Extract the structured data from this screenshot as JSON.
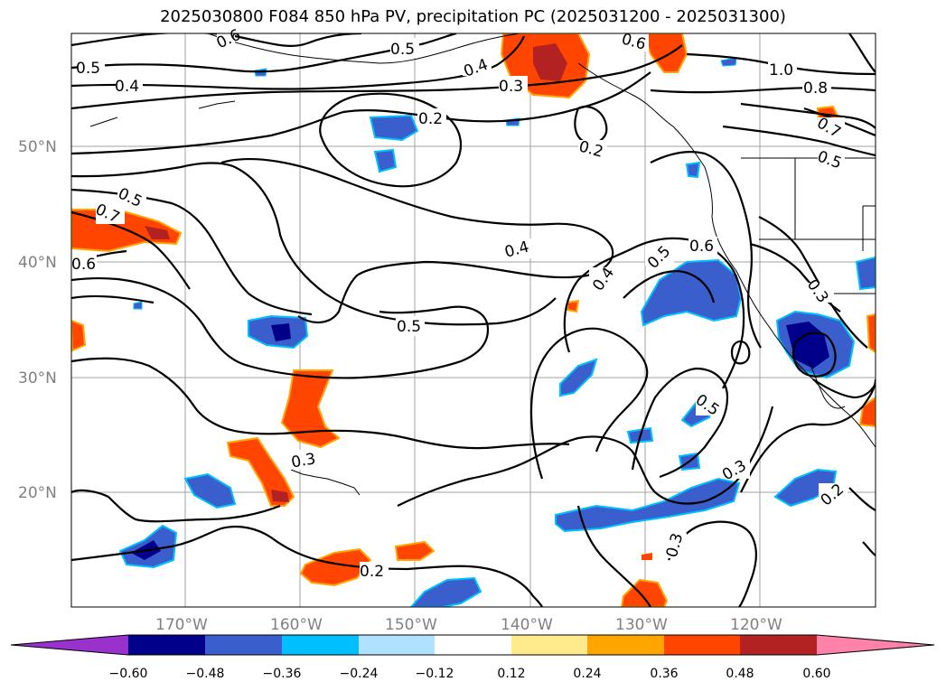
{
  "title": "2025030800 F084 850 hPa PV, precipitation PC (2025031200 - 2025031300)",
  "latitude_labels": [
    "50°N",
    "40°N",
    "30°N",
    "20°N"
  ],
  "longitude_labels": [
    "170°W",
    "160°W",
    "150°W",
    "140°W",
    "130°W",
    "120°W"
  ],
  "contour_labels": [
    "0.5",
    "0.4",
    "0.5",
    "0.4",
    "0.3",
    "0.6",
    "1.0",
    "0.8",
    "0.2",
    "0.2",
    "0.7",
    "0.5",
    "0.5",
    "0.7",
    "0.6",
    "0.4",
    "0.4",
    "0.5",
    "0.6",
    "0.5",
    "0.3",
    "0.5",
    "0.3",
    "0.3",
    "0.2",
    "0.2",
    "0.3",
    "0.6"
  ],
  "colorbar": {
    "ticks": [
      "−0.60",
      "−0.48",
      "−0.36",
      "−0.24",
      "−0.12",
      "0.12",
      "0.24",
      "0.36",
      "0.48",
      "0.60"
    ],
    "colors": [
      "#9932cc",
      "#00008b",
      "#3a5fcd",
      "#00bfff",
      "#b0e2ff",
      "#ffffff",
      "#ffeb8c",
      "#ffa500",
      "#ff4500",
      "#b22222",
      "#ff82ab"
    ]
  },
  "fill_colors": {
    "dark_blue": "#00008b",
    "mid_blue": "#3a5fcd",
    "light_blue": "#00bfff",
    "pale_blue": "#b0e2ff",
    "pale_yellow": "#ffeb8c",
    "orange": "#ffa500",
    "red_orange": "#ff4500",
    "dark_red": "#b22222"
  }
}
